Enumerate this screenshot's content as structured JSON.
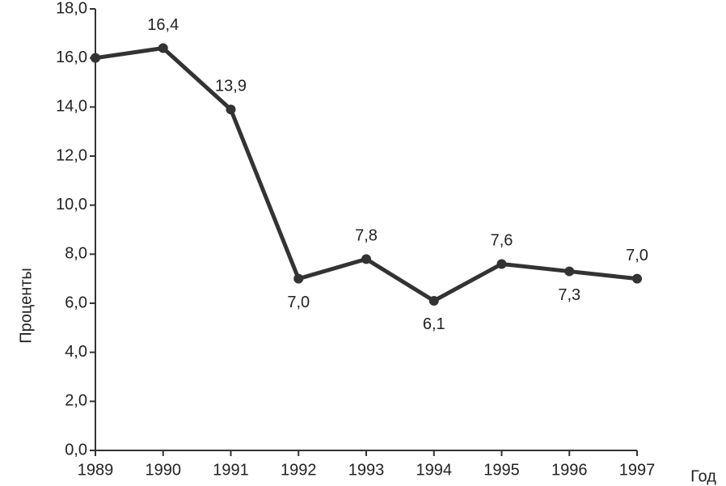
{
  "chart_data": {
    "type": "line",
    "x_label": "Год",
    "y_label": "Проценты",
    "categories": [
      "1989",
      "1990",
      "1991",
      "1992",
      "1993",
      "1994",
      "1995",
      "1996",
      "1997"
    ],
    "values": [
      16.0,
      16.4,
      13.9,
      7.0,
      7.8,
      6.1,
      7.6,
      7.3,
      7.0
    ],
    "value_labels": [
      null,
      "16,4",
      "13,9",
      "7,0",
      "7,8",
      "6,1",
      "7,6",
      "7,3",
      "7,0"
    ],
    "color": "#333333",
    "ylim": [
      0,
      18
    ],
    "yticks": [
      {
        "value": 0,
        "label": "0,0"
      },
      {
        "value": 2,
        "label": "2,0"
      },
      {
        "value": 4,
        "label": "4,0"
      },
      {
        "value": 6,
        "label": "6,0"
      },
      {
        "value": 8,
        "label": "8,0"
      },
      {
        "value": 10,
        "label": "10,0"
      },
      {
        "value": 12,
        "label": "12,0"
      },
      {
        "value": 14,
        "label": "14,0"
      },
      {
        "value": 16,
        "label": "16,0"
      },
      {
        "value": 18,
        "label": "18,0"
      }
    ],
    "grid": false
  }
}
